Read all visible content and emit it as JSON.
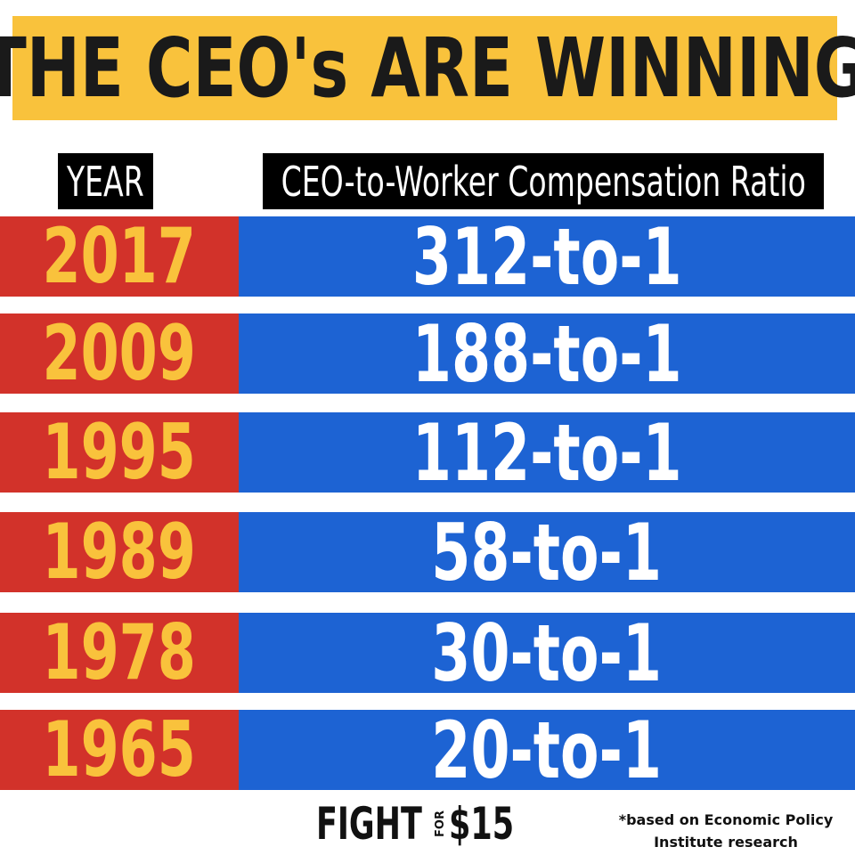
{
  "title": "THE CEO's ARE WINNING",
  "table": {
    "header": [
      "YEAR",
      "CEO-to-Worker Compensation Ratio"
    ],
    "rows": [
      [
        "2017",
        "312-to-1"
      ],
      [
        "2009",
        "188-to-1"
      ],
      [
        "1995",
        "112-to-1"
      ],
      [
        "1989",
        "58-to-1"
      ],
      [
        "1978",
        "30-to-1"
      ],
      [
        "1965",
        "20-to-1"
      ]
    ]
  },
  "footer": {
    "logo": [
      "FIGHT",
      "FOR",
      "$15"
    ],
    "note": [
      "*based on Economic Policy",
      "Institute research"
    ]
  }
}
